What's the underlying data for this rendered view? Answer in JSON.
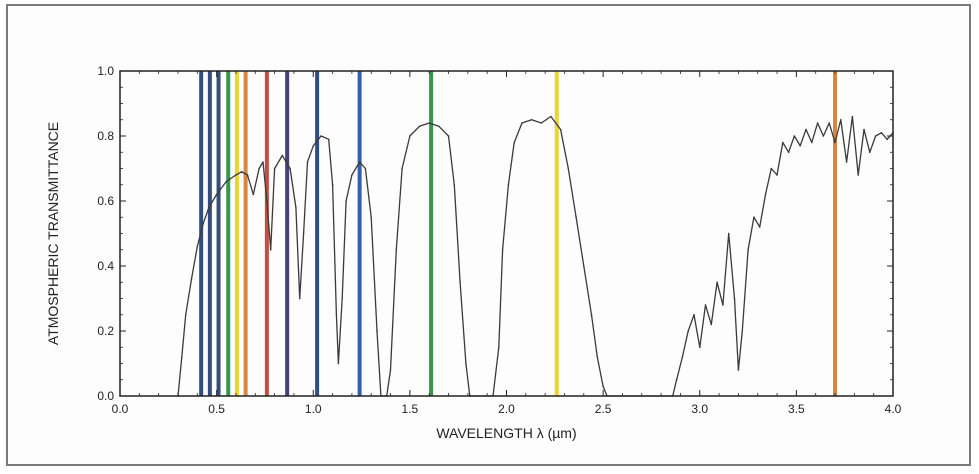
{
  "chart_data": {
    "type": "line",
    "title": "",
    "xlabel": "WAVELENGTH λ (µm)",
    "ylabel": "ATMOSPHERIC TRANSMITTANCE",
    "xlim": [
      0.0,
      4.0
    ],
    "ylim": [
      0.0,
      1.0
    ],
    "x_ticks": [
      "0.0",
      "0.5",
      "1.0",
      "1.5",
      "2.0",
      "2.5",
      "3.0",
      "3.5",
      "4.0"
    ],
    "y_ticks": [
      "0.0",
      "0.2",
      "0.4",
      "0.6",
      "0.8",
      "1.0"
    ],
    "grid": false,
    "series": [
      {
        "values": [
          [
            0.3,
            0.0
          ],
          [
            0.32,
            0.12
          ],
          [
            0.34,
            0.25
          ],
          [
            0.37,
            0.36
          ],
          [
            0.4,
            0.46
          ],
          [
            0.43,
            0.53
          ],
          [
            0.46,
            0.58
          ],
          [
            0.5,
            0.62
          ],
          [
            0.55,
            0.66
          ],
          [
            0.6,
            0.68
          ],
          [
            0.63,
            0.69
          ],
          [
            0.66,
            0.68
          ],
          [
            0.69,
            0.62
          ],
          [
            0.72,
            0.7
          ],
          [
            0.74,
            0.72
          ],
          [
            0.76,
            0.6
          ],
          [
            0.78,
            0.45
          ],
          [
            0.8,
            0.7
          ],
          [
            0.84,
            0.74
          ],
          [
            0.88,
            0.7
          ],
          [
            0.91,
            0.58
          ],
          [
            0.93,
            0.3
          ],
          [
            0.95,
            0.5
          ],
          [
            0.97,
            0.72
          ],
          [
            1.0,
            0.77
          ],
          [
            1.04,
            0.8
          ],
          [
            1.08,
            0.79
          ],
          [
            1.1,
            0.65
          ],
          [
            1.12,
            0.25
          ],
          [
            1.13,
            0.1
          ],
          [
            1.15,
            0.3
          ],
          [
            1.17,
            0.6
          ],
          [
            1.2,
            0.68
          ],
          [
            1.24,
            0.72
          ],
          [
            1.27,
            0.7
          ],
          [
            1.3,
            0.55
          ],
          [
            1.33,
            0.2
          ],
          [
            1.35,
            0.0
          ],
          [
            1.38,
            0.0
          ],
          [
            1.4,
            0.08
          ],
          [
            1.43,
            0.45
          ],
          [
            1.46,
            0.7
          ],
          [
            1.5,
            0.8
          ],
          [
            1.55,
            0.83
          ],
          [
            1.6,
            0.84
          ],
          [
            1.65,
            0.83
          ],
          [
            1.7,
            0.8
          ],
          [
            1.73,
            0.65
          ],
          [
            1.76,
            0.35
          ],
          [
            1.79,
            0.1
          ],
          [
            1.81,
            0.0
          ],
          [
            1.93,
            0.0
          ],
          [
            1.96,
            0.15
          ],
          [
            1.98,
            0.45
          ],
          [
            2.01,
            0.65
          ],
          [
            2.04,
            0.78
          ],
          [
            2.08,
            0.84
          ],
          [
            2.13,
            0.85
          ],
          [
            2.18,
            0.84
          ],
          [
            2.23,
            0.86
          ],
          [
            2.28,
            0.82
          ],
          [
            2.32,
            0.7
          ],
          [
            2.36,
            0.55
          ],
          [
            2.4,
            0.4
          ],
          [
            2.44,
            0.25
          ],
          [
            2.47,
            0.12
          ],
          [
            2.5,
            0.03
          ],
          [
            2.52,
            0.0
          ],
          [
            2.86,
            0.0
          ],
          [
            2.88,
            0.05
          ],
          [
            2.91,
            0.12
          ],
          [
            2.94,
            0.2
          ],
          [
            2.97,
            0.25
          ],
          [
            3.0,
            0.15
          ],
          [
            3.03,
            0.28
          ],
          [
            3.06,
            0.22
          ],
          [
            3.09,
            0.35
          ],
          [
            3.12,
            0.28
          ],
          [
            3.15,
            0.5
          ],
          [
            3.18,
            0.3
          ],
          [
            3.2,
            0.08
          ],
          [
            3.22,
            0.2
          ],
          [
            3.25,
            0.45
          ],
          [
            3.28,
            0.55
          ],
          [
            3.31,
            0.52
          ],
          [
            3.34,
            0.62
          ],
          [
            3.37,
            0.7
          ],
          [
            3.4,
            0.68
          ],
          [
            3.43,
            0.78
          ],
          [
            3.46,
            0.75
          ],
          [
            3.49,
            0.8
          ],
          [
            3.52,
            0.77
          ],
          [
            3.55,
            0.82
          ],
          [
            3.58,
            0.78
          ],
          [
            3.61,
            0.84
          ],
          [
            3.64,
            0.8
          ],
          [
            3.67,
            0.84
          ],
          [
            3.7,
            0.78
          ],
          [
            3.73,
            0.85
          ],
          [
            3.76,
            0.72
          ],
          [
            3.79,
            0.86
          ],
          [
            3.82,
            0.68
          ],
          [
            3.85,
            0.82
          ],
          [
            3.88,
            0.75
          ],
          [
            3.91,
            0.8
          ],
          [
            3.94,
            0.81
          ],
          [
            3.97,
            0.79
          ],
          [
            4.0,
            0.81
          ]
        ]
      }
    ],
    "band_markers": [
      {
        "x": 0.42,
        "color": "#1f3a73"
      },
      {
        "x": 0.465,
        "color": "#1f3a73"
      },
      {
        "x": 0.51,
        "color": "#1f3a73"
      },
      {
        "x": 0.56,
        "color": "#1f8c3a"
      },
      {
        "x": 0.605,
        "color": "#e8d21c"
      },
      {
        "x": 0.65,
        "color": "#d27a2a"
      },
      {
        "x": 0.76,
        "color": "#c0392b"
      },
      {
        "x": 0.865,
        "color": "#2e2f6e"
      },
      {
        "x": 1.02,
        "color": "#1f3a73"
      },
      {
        "x": 1.24,
        "color": "#1f4fa0"
      },
      {
        "x": 1.61,
        "color": "#1f8c3a"
      },
      {
        "x": 2.26,
        "color": "#e8d21c"
      },
      {
        "x": 3.7,
        "color": "#d27a2a"
      }
    ],
    "colors": {
      "curve": "#3a3a3a",
      "axes": "#222222"
    }
  }
}
